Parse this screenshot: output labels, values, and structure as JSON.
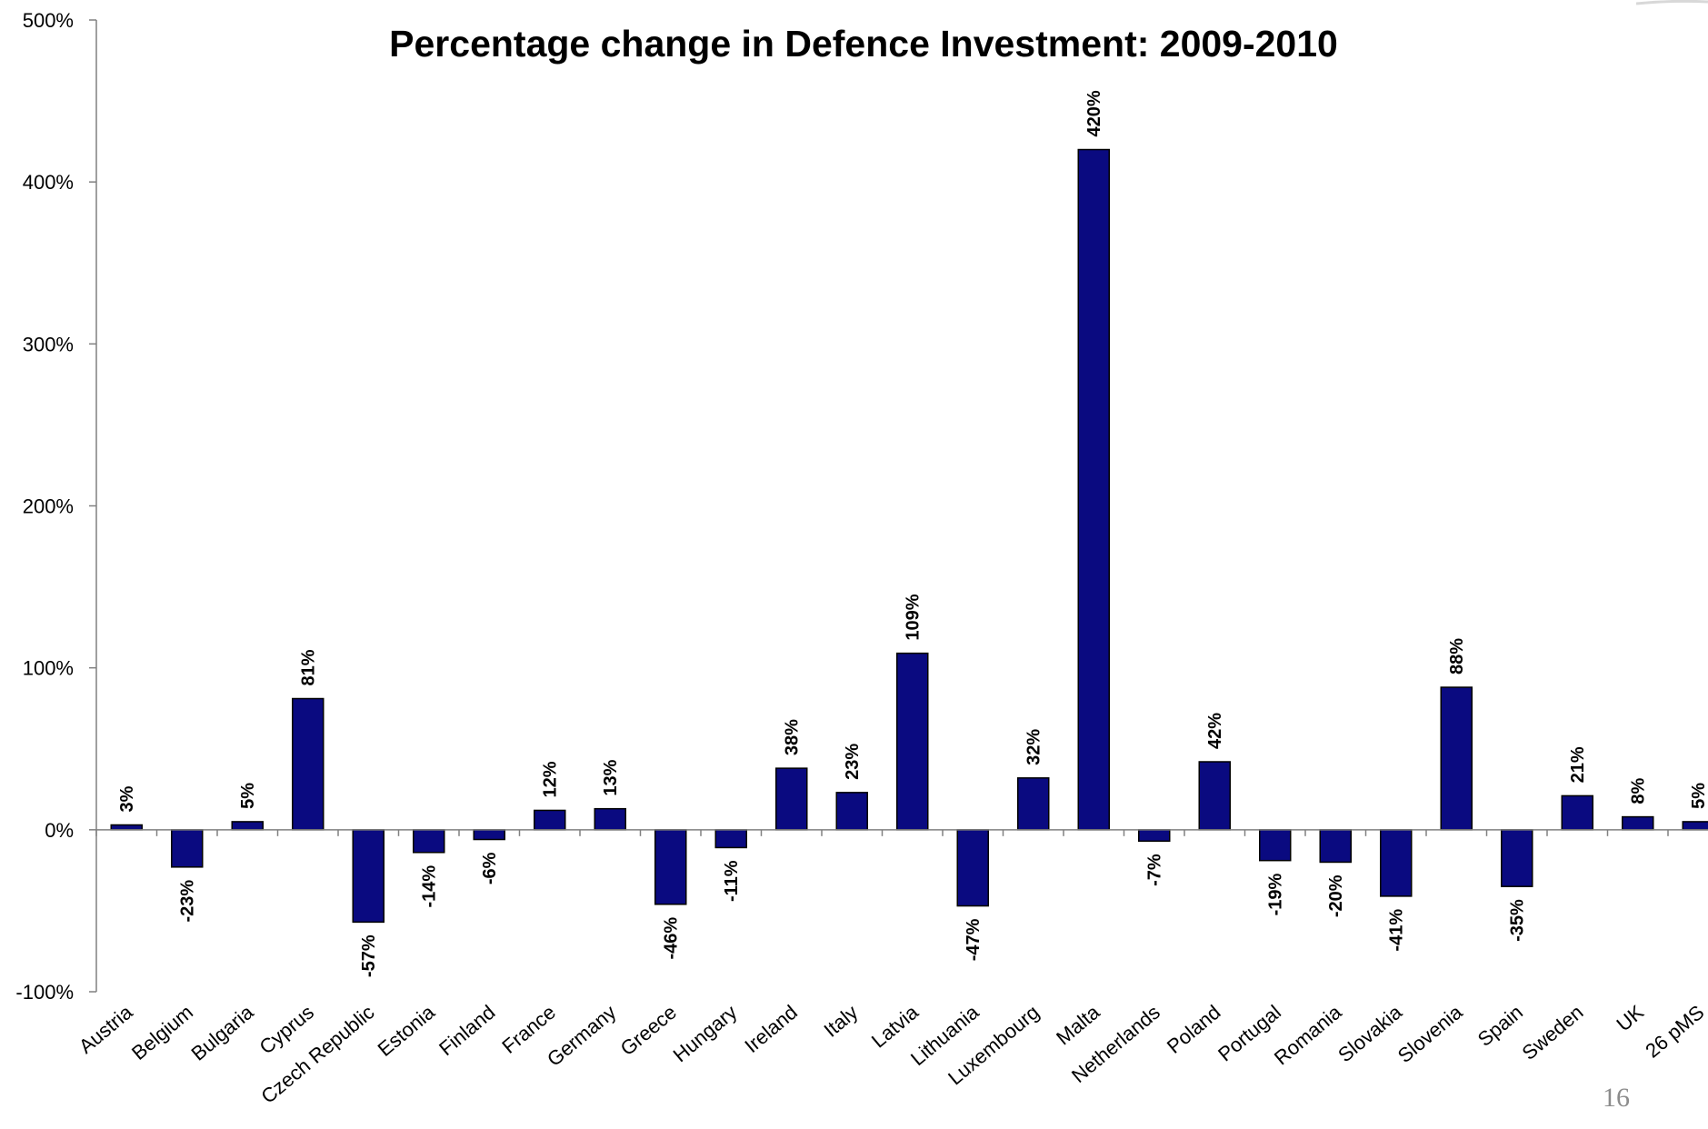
{
  "slide": {
    "page_number": "16"
  },
  "chart_data": {
    "type": "bar",
    "title": "Percentage change in Defence Investment: 2009-2010",
    "xlabel": "",
    "ylabel": "",
    "ylim": [
      -100,
      500
    ],
    "yticks": [
      -100,
      0,
      100,
      200,
      300,
      400,
      500
    ],
    "ytick_labels": [
      "-100%",
      "0%",
      "100%",
      "200%",
      "300%",
      "400%",
      "500%"
    ],
    "grid": false,
    "legend": "none",
    "bar_color": "#0a0a80",
    "categories": [
      "Austria",
      "Belgium",
      "Bulgaria",
      "Cyprus",
      "Czech Republic",
      "Estonia",
      "Finland",
      "France",
      "Germany",
      "Greece",
      "Hungary",
      "Ireland",
      "Italy",
      "Latvia",
      "Lithuania",
      "Luxembourg",
      "Malta",
      "Netherlands",
      "Poland",
      "Portugal",
      "Romania",
      "Slovakia",
      "Slovenia",
      "Spain",
      "Sweden",
      "UK",
      "26 pMS"
    ],
    "values": [
      3,
      -23,
      5,
      81,
      -57,
      -14,
      -6,
      12,
      13,
      -46,
      -11,
      38,
      23,
      109,
      -47,
      32,
      420,
      -7,
      42,
      -19,
      -20,
      -41,
      88,
      -35,
      21,
      8,
      5
    ],
    "data_labels": [
      "3%",
      "-23%",
      "5%",
      "81%",
      "-57%",
      "-14%",
      "-6%",
      "12%",
      "13%",
      "-46%",
      "-11%",
      "38%",
      "23%",
      "109%",
      "-47%",
      "32%",
      "420%",
      "-7%",
      "42%",
      "-19%",
      "-20%",
      "-41%",
      "88%",
      "-35%",
      "21%",
      "8%",
      "5%"
    ]
  }
}
